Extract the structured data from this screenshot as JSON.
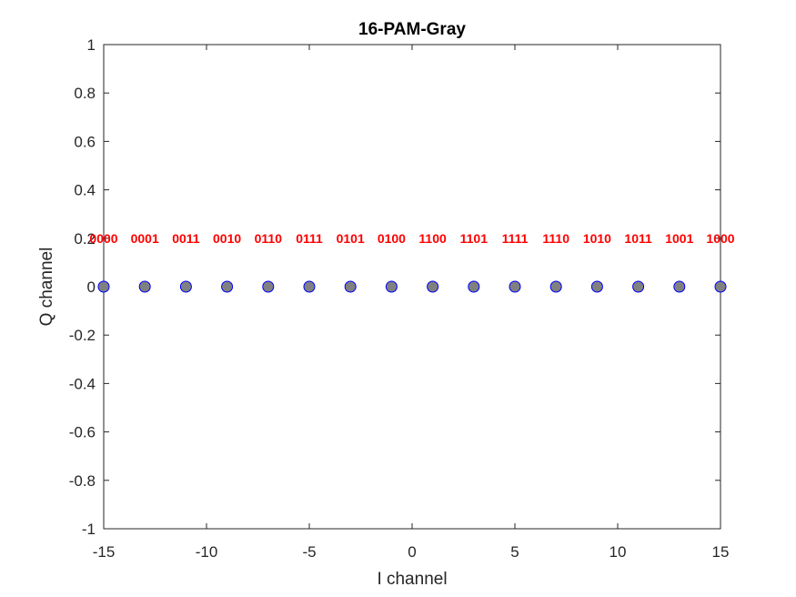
{
  "chart_data": {
    "type": "scatter",
    "title": "16-PAM-Gray",
    "xlabel": "I channel",
    "ylabel": "Q channel",
    "xlim": [
      -15,
      15
    ],
    "ylim": [
      -1,
      1
    ],
    "xticks": [
      -15,
      -10,
      -5,
      0,
      5,
      10,
      15
    ],
    "xtick_labels": [
      "-15",
      "-10",
      "-5",
      "0",
      "5",
      "10",
      "15"
    ],
    "yticks": [
      -1,
      -0.8,
      -0.6,
      -0.4,
      -0.2,
      0,
      0.2,
      0.4,
      0.6,
      0.8,
      1
    ],
    "ytick_labels": [
      "-1",
      "-0.8",
      "-0.6",
      "-0.4",
      "-0.2",
      "0",
      "0.2",
      "0.4",
      "0.6",
      "0.8",
      "1"
    ],
    "grid": false,
    "points": {
      "x": [
        -15,
        -13,
        -11,
        -9,
        -7,
        -5,
        -3,
        -1,
        1,
        3,
        5,
        7,
        9,
        11,
        13,
        15
      ],
      "y": [
        0,
        0,
        0,
        0,
        0,
        0,
        0,
        0,
        0,
        0,
        0,
        0,
        0,
        0,
        0,
        0
      ]
    },
    "marker_fill": "#808080",
    "marker_edge": "#0000ff",
    "annotations": {
      "y": 0.2,
      "color": "#ff0000",
      "labels": [
        "0000",
        "0001",
        "0011",
        "0010",
        "0110",
        "0111",
        "0101",
        "0100",
        "1100",
        "1101",
        "1111",
        "1110",
        "1010",
        "1011",
        "1001",
        "1000"
      ]
    }
  }
}
